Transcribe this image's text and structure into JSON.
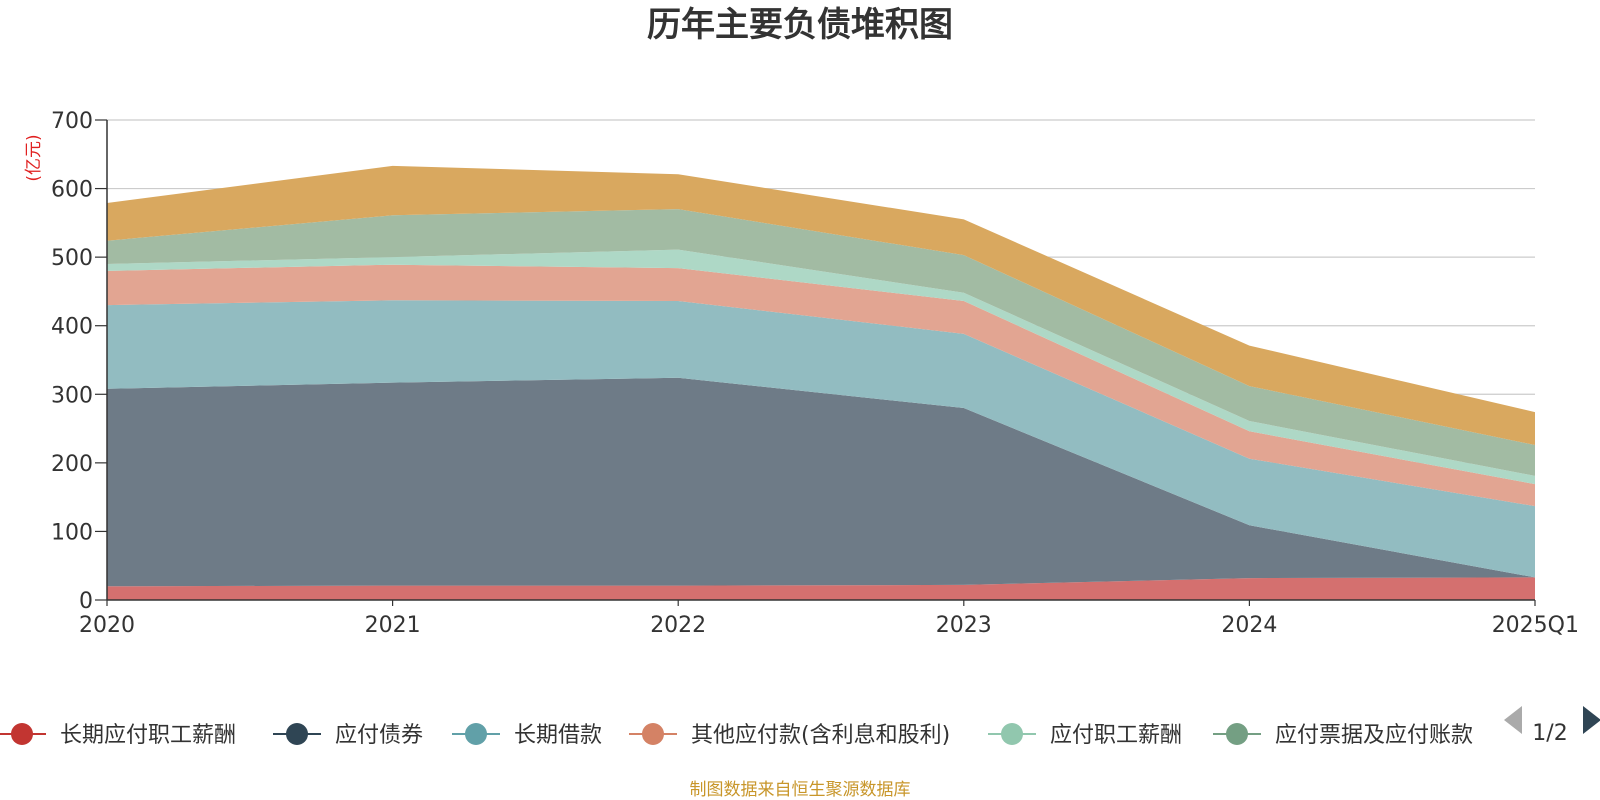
{
  "chart_data": {
    "type": "area",
    "stacked": true,
    "title": "历年主要负债堆积图",
    "y_unit": "(亿元)",
    "x": [
      "2020",
      "2021",
      "2022",
      "2023",
      "2024",
      "2025Q1"
    ],
    "ylim": [
      0,
      700
    ],
    "yticks": [
      0,
      100,
      200,
      300,
      400,
      500,
      600,
      700
    ],
    "grid": true,
    "legend_position": "bottom",
    "series": [
      {
        "name": "长期应付职工薪酬",
        "color": "#d4706f",
        "marker_color": "#c23531",
        "values": [
          20,
          21,
          21,
          22,
          32,
          33
        ]
      },
      {
        "name": "应付债券",
        "color": "#6e7b87",
        "marker_color": "#2f4554",
        "values": [
          288,
          296,
          303,
          258,
          77,
          0
        ]
      },
      {
        "name": "长期借款",
        "color": "#92bcc1",
        "marker_color": "#61a0a8",
        "values": [
          122,
          120,
          112,
          108,
          97,
          104
        ]
      },
      {
        "name": "其他应付款(含利息和股利)",
        "color": "#e2a592",
        "marker_color": "#d48265",
        "values": [
          50,
          52,
          48,
          48,
          40,
          32
        ]
      },
      {
        "name": "应付职工薪酬",
        "color": "#aed8c6",
        "marker_color": "#91c7ae",
        "values": [
          10,
          11,
          27,
          12,
          15,
          12
        ]
      },
      {
        "name": "应付票据及应付账款",
        "color": "#a2bba3",
        "marker_color": "#749f83",
        "values": [
          34,
          61,
          59,
          55,
          51,
          45
        ]
      },
      {
        "name": "",
        "color": "#d9a85f",
        "marker_color": "#ca8622",
        "values": [
          55,
          72,
          51,
          52,
          59,
          48
        ]
      }
    ]
  },
  "legend": {
    "items": [
      {
        "label": "长期应付职工薪酬"
      },
      {
        "label": "应付债券"
      },
      {
        "label": "长期借款"
      },
      {
        "label": "其他应付款(含利息和股利)"
      },
      {
        "label": "应付职工薪酬"
      },
      {
        "label": "应付票据及应付账款"
      }
    ],
    "page_indicator": "1/2"
  },
  "footer": "制图数据来自恒生聚源数据库"
}
